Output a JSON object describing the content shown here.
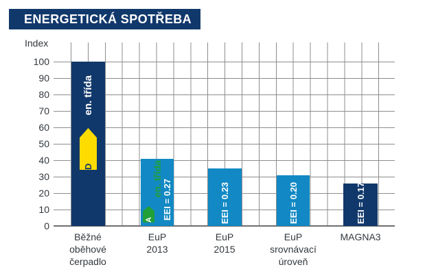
{
  "title": "ENERGETICKÁ SPOTŘEBA",
  "y_axis_label": "Index",
  "chart_data": {
    "type": "bar",
    "title": "ENERGETICKÁ SPOTŘEBA",
    "xlabel": "",
    "ylabel": "Index",
    "ylim": [
      0,
      100
    ],
    "grid": true,
    "yticks": [
      "100",
      "90",
      "80",
      "70",
      "60",
      "50",
      "40",
      "30",
      "20",
      "10",
      "0"
    ],
    "categories": [
      "Běžné oběhové čerpadlo",
      "EuP 2013",
      "EuP 2015",
      "EuP srovnávací úroveň",
      "MAGNA3"
    ],
    "values": [
      100,
      41,
      35,
      31,
      26
    ],
    "colors": {
      "dark_navy": "#11386B",
      "light_blue": "#1289C4",
      "yellow": "#FFDC00",
      "green": "#21A038"
    },
    "bars": [
      {
        "label_lines": [
          "Běžné",
          "oběhové",
          "čerpadlo"
        ],
        "value": 100,
        "color": "#11386B",
        "annotations": {
          "energy_class_label": "en. třída",
          "energy_class": "D",
          "arrow_color": "#FFDC00"
        }
      },
      {
        "label_lines": [
          "EuP",
          "2013"
        ],
        "value": 41,
        "color": "#1289C4",
        "annotations": {
          "energy_class_label": "en. třída",
          "energy_class": "A",
          "arrow_color": "#21A038",
          "eei": "EEI = 0.27"
        }
      },
      {
        "label_lines": [
          "EuP",
          "2015"
        ],
        "value": 35,
        "color": "#1289C4",
        "annotations": {
          "eei": "EEI = 0.23"
        }
      },
      {
        "label_lines": [
          "EuP",
          "srovnávací",
          "úroveň"
        ],
        "value": 31,
        "color": "#1289C4",
        "annotations": {
          "eei": "EEI = 0.20"
        }
      },
      {
        "label_lines": [
          "MAGNA3"
        ],
        "value": 26,
        "color": "#11386B",
        "annotations": {
          "eei": "EEI = 0.17"
        }
      }
    ]
  }
}
